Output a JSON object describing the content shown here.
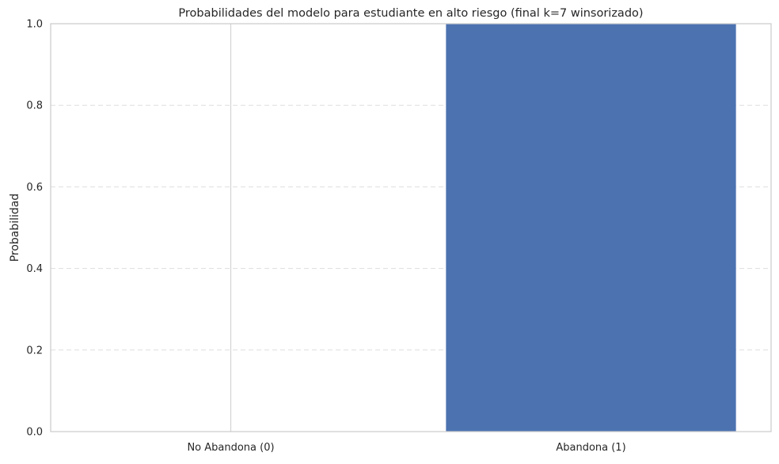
{
  "chart_data": {
    "type": "bar",
    "title": "Probabilidades del modelo para estudiante en alto riesgo (final k=7 winsorizado)",
    "xlabel": "",
    "ylabel": "Probabilidad",
    "categories": [
      "No Abandona (0)",
      "Abandona (1)"
    ],
    "values": [
      0.0,
      1.0
    ],
    "ylim": [
      0,
      1
    ],
    "yticks": [
      "0.0",
      "0.2",
      "0.4",
      "0.6",
      "0.8",
      "1.0"
    ],
    "grid": "y-dashed",
    "colors": {
      "bar": "#4c72b0",
      "grid": "#dddddd",
      "axes_edge": "#cccccc",
      "text": "#262626"
    }
  }
}
